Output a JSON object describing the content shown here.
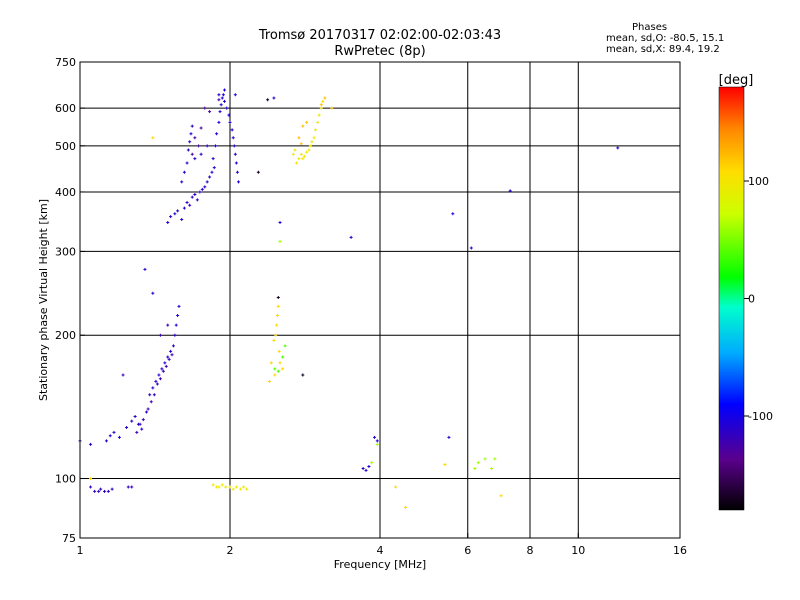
{
  "header": {
    "title": "Tromsø 20170317 02:02:00-02:03:43",
    "subtitle": "RwPretec (8p)"
  },
  "phase_box": {
    "heading": "Phases",
    "line_o": "mean, sd,O: -80.5, 15.1",
    "line_x": "mean, sd,X:  89.4, 19.2"
  },
  "chart_data": {
    "type": "scatter",
    "xlabel": "Frequency [MHz]",
    "ylabel": "Stationary phase Virtual Height [km]",
    "x_scale": "log",
    "y_scale": "log",
    "xlim": [
      1,
      16
    ],
    "ylim": [
      75,
      750
    ],
    "x_ticks": [
      1,
      2,
      4,
      6,
      8,
      10,
      16
    ],
    "x_tick_labels": [
      "1",
      "2",
      "4",
      "6",
      "8",
      "10",
      "16"
    ],
    "y_ticks": [
      75,
      100,
      200,
      300,
      400,
      500,
      600,
      750
    ],
    "y_tick_labels": [
      "75",
      "100",
      "200",
      "300",
      "400",
      "500",
      "600",
      "750"
    ],
    "grid_x": [
      2,
      4,
      6,
      8,
      10
    ],
    "grid_y": [
      100,
      200,
      300,
      400,
      500,
      600
    ],
    "colorbar": {
      "label": "[deg]",
      "range": [
        -180,
        180
      ],
      "ticks": [
        100,
        0,
        -100
      ],
      "tick_labels": [
        "100",
        "0",
        "-100"
      ]
    },
    "series": [
      {
        "phase": -115,
        "points": [
          [
            1.05,
            96
          ],
          [
            1.07,
            94
          ],
          [
            1.09,
            94
          ],
          [
            1.1,
            95
          ],
          [
            1.12,
            94
          ],
          [
            1.14,
            94
          ],
          [
            1.16,
            95
          ],
          [
            1.25,
            96
          ],
          [
            1.27,
            96
          ]
        ]
      },
      {
        "phase": -110,
        "points": [
          [
            1.13,
            120
          ],
          [
            1.15,
            123
          ],
          [
            1.17,
            125
          ],
          [
            1.2,
            122
          ],
          [
            1.24,
            128
          ],
          [
            1.27,
            132
          ],
          [
            1.29,
            135
          ],
          [
            1.31,
            130
          ],
          [
            1.33,
            127
          ],
          [
            1.36,
            138
          ],
          [
            1.38,
            150
          ],
          [
            1.4,
            155
          ],
          [
            1.42,
            160
          ],
          [
            1.44,
            165
          ],
          [
            1.46,
            170
          ],
          [
            1.48,
            175
          ],
          [
            1.5,
            180
          ],
          [
            1.52,
            185
          ],
          [
            1.54,
            190
          ],
          [
            1.55,
            200
          ],
          [
            1.56,
            210
          ],
          [
            1.57,
            220
          ],
          [
            1.58,
            230
          ],
          [
            1.35,
            275
          ],
          [
            1.4,
            245
          ]
        ]
      },
      {
        "phase": -120,
        "points": [
          [
            1.3,
            125
          ],
          [
            1.32,
            130
          ],
          [
            1.34,
            133
          ],
          [
            1.37,
            140
          ],
          [
            1.39,
            145
          ],
          [
            1.41,
            150
          ],
          [
            1.43,
            158
          ],
          [
            1.45,
            162
          ],
          [
            1.47,
            168
          ],
          [
            1.49,
            172
          ],
          [
            1.51,
            178
          ],
          [
            1.53,
            182
          ],
          [
            1.45,
            200
          ],
          [
            1.5,
            210
          ],
          [
            1.22,
            165
          ],
          [
            1.0,
            120
          ]
        ]
      },
      {
        "phase": -112,
        "points": [
          [
            1.5,
            345
          ],
          [
            1.52,
            355
          ],
          [
            1.55,
            360
          ],
          [
            1.57,
            365
          ],
          [
            1.6,
            350
          ],
          [
            1.62,
            370
          ],
          [
            1.64,
            380
          ],
          [
            1.66,
            375
          ],
          [
            1.68,
            390
          ],
          [
            1.7,
            395
          ],
          [
            1.72,
            385
          ],
          [
            1.74,
            400
          ],
          [
            1.76,
            405
          ],
          [
            1.78,
            410
          ],
          [
            1.8,
            420
          ],
          [
            1.82,
            430
          ],
          [
            1.84,
            440
          ],
          [
            1.86,
            450
          ],
          [
            1.6,
            420
          ],
          [
            1.62,
            440
          ],
          [
            1.64,
            460
          ],
          [
            1.65,
            490
          ],
          [
            1.66,
            510
          ],
          [
            1.67,
            530
          ],
          [
            1.68,
            550
          ],
          [
            1.7,
            470
          ],
          [
            1.75,
            480
          ],
          [
            1.8,
            500
          ]
        ]
      },
      {
        "phase": -105,
        "points": [
          [
            1.85,
            470
          ],
          [
            1.87,
            500
          ],
          [
            1.88,
            530
          ],
          [
            1.9,
            560
          ],
          [
            1.91,
            590
          ],
          [
            1.92,
            610
          ],
          [
            1.93,
            630
          ],
          [
            1.94,
            640
          ],
          [
            1.95,
            620
          ],
          [
            1.97,
            600
          ],
          [
            1.99,
            580
          ],
          [
            2.0,
            560
          ],
          [
            2.02,
            540
          ],
          [
            2.03,
            520
          ],
          [
            2.04,
            500
          ],
          [
            2.05,
            480
          ],
          [
            2.06,
            460
          ],
          [
            2.07,
            440
          ],
          [
            2.08,
            420
          ],
          [
            1.9,
            640
          ],
          [
            1.95,
            655
          ],
          [
            2.05,
            640
          ]
        ]
      },
      {
        "phase": -130,
        "points": [
          [
            1.78,
            600
          ],
          [
            1.82,
            590
          ],
          [
            1.75,
            545
          ],
          [
            1.7,
            520
          ],
          [
            1.73,
            500
          ],
          [
            1.68,
            480
          ],
          [
            1.9,
            625
          ]
        ]
      },
      {
        "phase": 95,
        "points": [
          [
            1.85,
            97
          ],
          [
            1.88,
            96
          ],
          [
            1.9,
            96
          ],
          [
            1.93,
            97
          ],
          [
            1.96,
            96
          ],
          [
            2.0,
            96
          ],
          [
            2.03,
            95
          ],
          [
            2.06,
            96
          ],
          [
            2.1,
            95
          ],
          [
            2.13,
            96
          ],
          [
            2.16,
            95
          ]
        ]
      },
      {
        "phase": 110,
        "points": [
          [
            2.45,
            195
          ],
          [
            2.47,
            200
          ],
          [
            2.48,
            210
          ],
          [
            2.49,
            220
          ],
          [
            2.5,
            230
          ],
          [
            2.51,
            185
          ],
          [
            2.52,
            175
          ],
          [
            2.55,
            170
          ],
          [
            2.4,
            160
          ],
          [
            2.42,
            175
          ],
          [
            2.46,
            165
          ]
        ]
      },
      {
        "phase": 100,
        "points": [
          [
            2.72,
            460
          ],
          [
            2.75,
            470
          ],
          [
            2.78,
            480
          ],
          [
            2.8,
            470
          ],
          [
            2.82,
            475
          ],
          [
            2.85,
            485
          ],
          [
            2.88,
            490
          ],
          [
            2.9,
            500
          ],
          [
            2.92,
            510
          ],
          [
            2.95,
            520
          ],
          [
            2.97,
            540
          ],
          [
            3.0,
            560
          ],
          [
            3.02,
            580
          ],
          [
            3.05,
            600
          ],
          [
            3.07,
            620
          ],
          [
            2.7,
            490
          ],
          [
            2.68,
            480
          ]
        ]
      },
      {
        "phase": 120,
        "points": [
          [
            2.75,
            520
          ],
          [
            2.8,
            550
          ],
          [
            2.85,
            560
          ],
          [
            3.05,
            610
          ],
          [
            3.1,
            630
          ],
          [
            3.2,
            600
          ],
          [
            2.78,
            505
          ]
        ]
      },
      {
        "phase": 40,
        "points": [
          [
            2.46,
            170
          ],
          [
            2.5,
            168
          ],
          [
            2.55,
            180
          ],
          [
            2.58,
            190
          ]
        ]
      },
      {
        "phase": -110,
        "points": [
          [
            3.7,
            105
          ],
          [
            3.75,
            104
          ],
          [
            3.8,
            106
          ],
          [
            3.9,
            122
          ],
          [
            3.95,
            120
          ],
          [
            5.5,
            122
          ],
          [
            7.3,
            402
          ],
          [
            12.0,
            495
          ],
          [
            3.5,
            321
          ],
          [
            5.6,
            360
          ],
          [
            6.1,
            305
          ],
          [
            2.52,
            345
          ],
          [
            2.45,
            630
          ],
          [
            1.05,
            118
          ]
        ]
      },
      {
        "phase": 60,
        "points": [
          [
            3.85,
            108
          ],
          [
            3.95,
            118
          ],
          [
            6.2,
            105
          ],
          [
            6.3,
            108
          ],
          [
            6.5,
            110
          ],
          [
            6.8,
            110
          ],
          [
            6.7,
            105
          ],
          [
            2.52,
            315
          ]
        ]
      },
      {
        "phase": 110,
        "points": [
          [
            4.3,
            96
          ],
          [
            4.5,
            87
          ],
          [
            5.4,
            107
          ],
          [
            7.0,
            92
          ],
          [
            1.05,
            100
          ],
          [
            1.4,
            520
          ]
        ]
      },
      {
        "phase": -170,
        "points": [
          [
            2.38,
            625
          ],
          [
            2.28,
            440
          ],
          [
            2.5,
            240
          ],
          [
            2.8,
            165
          ]
        ]
      }
    ]
  }
}
